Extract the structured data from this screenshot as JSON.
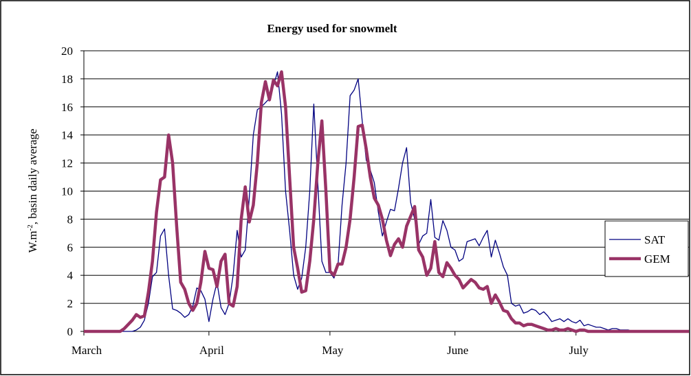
{
  "chart_data": {
    "type": "line",
    "title": "Energy used for snowmelt",
    "y_label": {
      "text": "W.m",
      "superscript": "-2",
      "rest": ", basin daily average"
    },
    "x": [
      0,
      1,
      2,
      3,
      4,
      5,
      6,
      7,
      8,
      9,
      10,
      11,
      12,
      13,
      14,
      15,
      16,
      17,
      18,
      19,
      20,
      21,
      22,
      23,
      24,
      25,
      26,
      27,
      28,
      29,
      30,
      31,
      32,
      33,
      34,
      35,
      36,
      37,
      38,
      39,
      40,
      41,
      42,
      43,
      44,
      45,
      46,
      47,
      48,
      49,
      50,
      51,
      52,
      53,
      54,
      55,
      56,
      57,
      58,
      59,
      60,
      61,
      62,
      63,
      64,
      65,
      66,
      67,
      68,
      69,
      70,
      71,
      72,
      73,
      74,
      75,
      76,
      77,
      78,
      79,
      80,
      81,
      82,
      83,
      84,
      85,
      86,
      87,
      88,
      89,
      90,
      91,
      92,
      93,
      94,
      95,
      96,
      97,
      98,
      99,
      100,
      101,
      102,
      103,
      104,
      105,
      106,
      107,
      108,
      109,
      110,
      111,
      112,
      113,
      114,
      115,
      116,
      117,
      118,
      119,
      120,
      121,
      122,
      123,
      124,
      125,
      126,
      127,
      128,
      129,
      130,
      131,
      132,
      133,
      134,
      135,
      136,
      137,
      138,
      139,
      140,
      141,
      142,
      143,
      144,
      145,
      146,
      147,
      148,
      149,
      150
    ],
    "series": [
      {
        "name": "SAT",
        "color": "#000080",
        "width": 1.3,
        "values": [
          0,
          0,
          0,
          0,
          0,
          0,
          0,
          0,
          0,
          0,
          0,
          0,
          0,
          0.1,
          0.3,
          0.8,
          2,
          3.9,
          4.2,
          6.8,
          7.3,
          4,
          1.6,
          1.5,
          1.3,
          1,
          1.2,
          1.8,
          3.1,
          2.9,
          2.3,
          0.7,
          2.3,
          3.5,
          1.7,
          1.2,
          2,
          4,
          7.2,
          5.3,
          5.8,
          9.5,
          14,
          15.8,
          16,
          16.3,
          16.6,
          17.5,
          18.5,
          15.5,
          10,
          7.2,
          4,
          3,
          3.8,
          6,
          10,
          16.2,
          10.5,
          5,
          4.2,
          4.2,
          3.8,
          4.7,
          9,
          12,
          16.8,
          17.2,
          18,
          15,
          12.2,
          11.5,
          10.6,
          8.5,
          6.8,
          7.8,
          8.7,
          8.6,
          10.2,
          12,
          13.1,
          9.2,
          8,
          6.2,
          6.8,
          7,
          9.4,
          6.7,
          6.5,
          7.9,
          7.2,
          6,
          5.8,
          5,
          5.2,
          6.4,
          6.5,
          6.6,
          6.1,
          6.7,
          7.2,
          5.3,
          6.5,
          5.6,
          4.6,
          4,
          2,
          1.8,
          1.9,
          1.3,
          1.4,
          1.6,
          1.5,
          1.2,
          1.4,
          1.1,
          0.7,
          0.8,
          0.9,
          0.7,
          0.9,
          0.7,
          0.6,
          0.8,
          0.4,
          0.5,
          0.4,
          0.3,
          0.3,
          0.2,
          0.1,
          0.2,
          0.2,
          0.1,
          0.1,
          0.1,
          0,
          0,
          0,
          0,
          0,
          0,
          0,
          0,
          0,
          0,
          0,
          0,
          0,
          0,
          0
        ]
      },
      {
        "name": "GEM",
        "color": "#993366",
        "width": 4.5,
        "values": [
          0,
          0,
          0,
          0,
          0,
          0,
          0,
          0,
          0,
          0,
          0.2,
          0.5,
          0.8,
          1.2,
          1,
          1.1,
          2.8,
          5,
          8.5,
          10.8,
          11,
          14,
          12,
          7.5,
          3.5,
          3,
          2,
          1.5,
          2,
          3.5,
          5.7,
          4.5,
          4.4,
          3.2,
          5,
          5.5,
          2,
          1.8,
          3.2,
          8,
          10.3,
          7.8,
          9,
          12,
          16.3,
          17.8,
          16.5,
          17.9,
          17.5,
          18.5,
          16,
          11,
          6,
          4.5,
          2.8,
          2.9,
          5,
          8,
          12,
          15,
          10,
          4.3,
          4,
          4.8,
          4.8,
          6,
          8,
          11,
          14.6,
          14.7,
          13,
          11,
          9.5,
          9,
          8,
          6.5,
          5.4,
          6.2,
          6.6,
          6,
          7.5,
          8.2,
          8.9,
          5.8,
          5.3,
          4,
          4.5,
          6.4,
          4.2,
          3.9,
          4.9,
          4.5,
          4,
          3.7,
          3.1,
          3.4,
          3.7,
          3.5,
          3.1,
          3,
          3.2,
          2,
          2.6,
          2.1,
          1.5,
          1.4,
          0.9,
          0.6,
          0.6,
          0.4,
          0.5,
          0.5,
          0.4,
          0.3,
          0.2,
          0.1,
          0.1,
          0.2,
          0.1,
          0.1,
          0.2,
          0.1,
          0,
          0.1,
          0.1,
          0,
          0,
          0,
          0,
          0,
          0,
          0,
          0,
          0,
          0,
          0,
          0,
          0,
          0,
          0,
          0,
          0,
          0,
          0,
          0,
          0,
          0,
          0,
          0,
          0,
          0
        ]
      }
    ],
    "xlim": [
      0,
      150
    ],
    "xticks": [
      {
        "value": 0,
        "label": "March"
      },
      {
        "value": 31,
        "label": "April"
      },
      {
        "value": 61,
        "label": "May"
      },
      {
        "value": 92,
        "label": "June"
      },
      {
        "value": 122,
        "label": "July"
      }
    ],
    "ylim": [
      0,
      20
    ],
    "yticks": [
      0,
      2,
      4,
      6,
      8,
      10,
      12,
      14,
      16,
      18,
      20
    ],
    "grid": true,
    "legend": "right"
  }
}
